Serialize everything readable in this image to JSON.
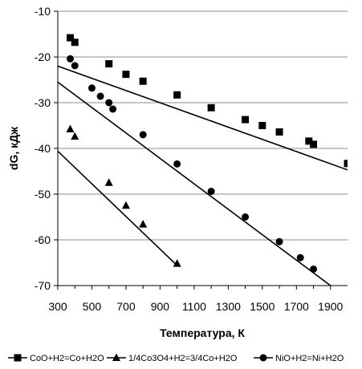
{
  "chart_data": {
    "type": "line",
    "title": "",
    "xlabel": "Температура, К",
    "ylabel": "dG, кДж",
    "xlim": [
      300,
      2000
    ],
    "ylim": [
      -70,
      -10
    ],
    "xticks": [
      300,
      500,
      700,
      900,
      1100,
      1300,
      1500,
      1700,
      1900
    ],
    "yticks": [
      -70,
      -60,
      -50,
      -40,
      -30,
      -20,
      -10
    ],
    "grid": "horizontal",
    "legend_position": "bottom",
    "series": [
      {
        "name": "CoO+H2=Co+H2O",
        "marker": "square",
        "line_x": [
          300,
          2000
        ],
        "line_y": [
          -22.0,
          -44.7
        ],
        "x": [
          373,
          400,
          600,
          700,
          800,
          1000,
          1200,
          1400,
          1500,
          1600,
          1773,
          1800,
          2000
        ],
        "y": [
          -15.8,
          -16.8,
          -21.5,
          -23.8,
          -25.3,
          -28.3,
          -31.1,
          -33.7,
          -35.0,
          -36.4,
          -38.4,
          -39.1,
          -43.3
        ]
      },
      {
        "name": "1/4Co3O4+H2=3/4Co+H2O",
        "marker": "triangle",
        "line_x": [
          300,
          1000
        ],
        "line_y": [
          -40.6,
          -65.6
        ],
        "x": [
          373,
          400,
          600,
          700,
          800,
          1000
        ],
        "y": [
          -35.8,
          -37.4,
          -47.5,
          -52.5,
          -56.6,
          -65.2
        ]
      },
      {
        "name": "NiO+H2=Ni+H2O",
        "marker": "circle",
        "line_x": [
          300,
          1900
        ],
        "line_y": [
          -25.5,
          -70.0
        ],
        "x": [
          373,
          400,
          500,
          550,
          600,
          623,
          800,
          1000,
          1200,
          1400,
          1600,
          1723,
          1800
        ],
        "y": [
          -20.4,
          -21.9,
          -26.8,
          -28.6,
          -30.0,
          -31.4,
          -37.0,
          -43.4,
          -49.4,
          -55.0,
          -60.4,
          -63.9,
          -66.4
        ]
      }
    ]
  }
}
